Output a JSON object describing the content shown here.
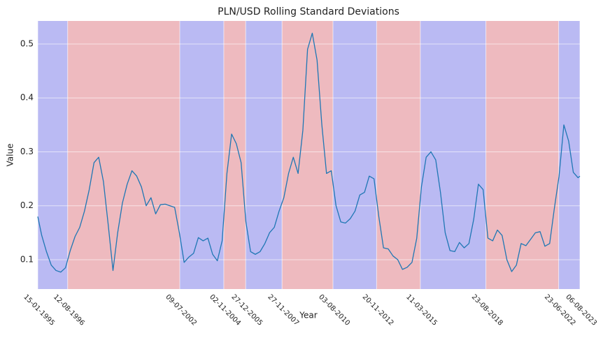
{
  "chart_data": {
    "type": "line",
    "title": "PLN/USD Rolling Standard Deviations",
    "xlabel": "Year",
    "ylabel": "Value",
    "color": "#1f77b4",
    "grid": true,
    "x": [
      "1995-01-15",
      "1995-04-01",
      "1995-07-01",
      "1995-10-01",
      "1996-01-01",
      "1996-04-01",
      "1996-07-01",
      "1996-10-01",
      "1997-01-01",
      "1997-04-01",
      "1997-07-01",
      "1997-10-01",
      "1998-01-01",
      "1998-04-01",
      "1998-07-01",
      "1998-10-01",
      "1999-01-01",
      "1999-04-01",
      "1999-07-01",
      "1999-10-01",
      "2000-01-01",
      "2000-04-01",
      "2000-07-01",
      "2000-10-01",
      "2001-01-01",
      "2001-04-01",
      "2001-07-01",
      "2001-10-01",
      "2002-01-01",
      "2002-04-01",
      "2002-07-01",
      "2002-10-01",
      "2003-01-01",
      "2003-04-01",
      "2003-07-01",
      "2003-10-01",
      "2004-01-01",
      "2004-04-01",
      "2004-07-01",
      "2004-10-01",
      "2005-01-01",
      "2005-04-01",
      "2005-07-01",
      "2005-10-01",
      "2006-01-01",
      "2006-04-01",
      "2006-07-01",
      "2006-10-01",
      "2007-01-01",
      "2007-04-01",
      "2007-07-01",
      "2007-10-01",
      "2008-01-01",
      "2008-04-01",
      "2008-07-01",
      "2008-10-01",
      "2009-01-01",
      "2009-04-01",
      "2009-07-01",
      "2009-10-01",
      "2010-01-01",
      "2010-04-01",
      "2010-07-01",
      "2010-10-01",
      "2011-01-01",
      "2011-04-01",
      "2011-07-01",
      "2011-10-01",
      "2012-01-01",
      "2012-04-01",
      "2012-07-01",
      "2012-10-01",
      "2013-01-01",
      "2013-04-01",
      "2013-07-01",
      "2013-10-01",
      "2014-01-01",
      "2014-04-01",
      "2014-07-01",
      "2014-10-01",
      "2015-01-01",
      "2015-04-01",
      "2015-07-01",
      "2015-10-01",
      "2016-01-01",
      "2016-04-01",
      "2016-07-01",
      "2016-10-01",
      "2017-01-01",
      "2017-04-01",
      "2017-07-01",
      "2017-10-01",
      "2018-01-01",
      "2018-04-01",
      "2018-07-01",
      "2018-10-01",
      "2019-01-01",
      "2019-04-01",
      "2019-07-01",
      "2019-10-01",
      "2020-01-01",
      "2020-04-01",
      "2020-07-01",
      "2020-10-01",
      "2021-01-01",
      "2021-04-01",
      "2021-07-01",
      "2021-10-01",
      "2022-01-01",
      "2022-04-01",
      "2022-07-01",
      "2022-10-01",
      "2023-01-01",
      "2023-04-01",
      "2023-07-01",
      "2023-08-06"
    ],
    "values": [
      0.18,
      0.145,
      0.115,
      0.09,
      0.08,
      0.077,
      0.085,
      0.117,
      0.143,
      0.16,
      0.19,
      0.23,
      0.28,
      0.29,
      0.245,
      0.165,
      0.08,
      0.15,
      0.205,
      0.24,
      0.265,
      0.255,
      0.235,
      0.2,
      0.215,
      0.185,
      0.202,
      0.203,
      0.2,
      0.197,
      0.15,
      0.095,
      0.105,
      0.112,
      0.141,
      0.135,
      0.14,
      0.11,
      0.098,
      0.135,
      0.26,
      0.333,
      0.315,
      0.28,
      0.17,
      0.115,
      0.11,
      0.115,
      0.13,
      0.15,
      0.16,
      0.19,
      0.215,
      0.26,
      0.29,
      0.26,
      0.34,
      0.49,
      0.52,
      0.47,
      0.35,
      0.26,
      0.265,
      0.2,
      0.17,
      0.168,
      0.176,
      0.19,
      0.22,
      0.225,
      0.255,
      0.25,
      0.18,
      0.122,
      0.12,
      0.107,
      0.1,
      0.082,
      0.086,
      0.095,
      0.14,
      0.235,
      0.29,
      0.3,
      0.285,
      0.225,
      0.15,
      0.117,
      0.115,
      0.132,
      0.122,
      0.13,
      0.175,
      0.24,
      0.23,
      0.14,
      0.135,
      0.155,
      0.145,
      0.1,
      0.078,
      0.09,
      0.13,
      0.126,
      0.138,
      0.15,
      0.152,
      0.125,
      0.13,
      0.195,
      0.255,
      0.35,
      0.32,
      0.262,
      0.252,
      0.255
    ],
    "regions": [
      {
        "start": "1995-01-15",
        "end": "1996-08-12",
        "color": "#babaf3"
      },
      {
        "start": "1996-08-12",
        "end": "2002-07-09",
        "color": "#eebabf"
      },
      {
        "start": "2002-07-09",
        "end": "2004-11-02",
        "color": "#babaf3"
      },
      {
        "start": "2004-11-02",
        "end": "2005-12-27",
        "color": "#eebabf"
      },
      {
        "start": "2005-12-27",
        "end": "2007-11-27",
        "color": "#babaf3"
      },
      {
        "start": "2007-11-27",
        "end": "2010-08-03",
        "color": "#eebabf"
      },
      {
        "start": "2010-08-03",
        "end": "2012-11-20",
        "color": "#babaf3"
      },
      {
        "start": "2012-11-20",
        "end": "2015-03-11",
        "color": "#eebabf"
      },
      {
        "start": "2015-03-11",
        "end": "2018-08-23",
        "color": "#babaf3"
      },
      {
        "start": "2018-08-23",
        "end": "2022-06-23",
        "color": "#eebabf"
      },
      {
        "start": "2022-06-23",
        "end": "2023-08-06",
        "color": "#babaf3"
      }
    ],
    "xlim": [
      "1995-01-15",
      "2023-08-06"
    ],
    "xticks": [
      {
        "value": "1995-01-15",
        "label": "15-01-1995"
      },
      {
        "value": "1996-08-12",
        "label": "12-08-1996"
      },
      {
        "value": "2002-07-09",
        "label": "09-07-2002"
      },
      {
        "value": "2004-11-02",
        "label": "02-11-2004"
      },
      {
        "value": "2005-12-27",
        "label": "27-12-2005"
      },
      {
        "value": "2007-11-27",
        "label": "27-11-2007"
      },
      {
        "value": "2010-08-03",
        "label": "03-08-2010"
      },
      {
        "value": "2012-11-20",
        "label": "20-11-2012"
      },
      {
        "value": "2015-03-11",
        "label": "11-03-2015"
      },
      {
        "value": "2018-08-23",
        "label": "23-08-2018"
      },
      {
        "value": "2022-06-23",
        "label": "23-06-2022"
      },
      {
        "value": "2023-08-06",
        "label": "06-08-2023"
      }
    ],
    "ylim": [
      0.0456,
      0.5427
    ],
    "yticks": [
      0.1,
      0.2,
      0.3,
      0.4,
      0.5
    ]
  }
}
